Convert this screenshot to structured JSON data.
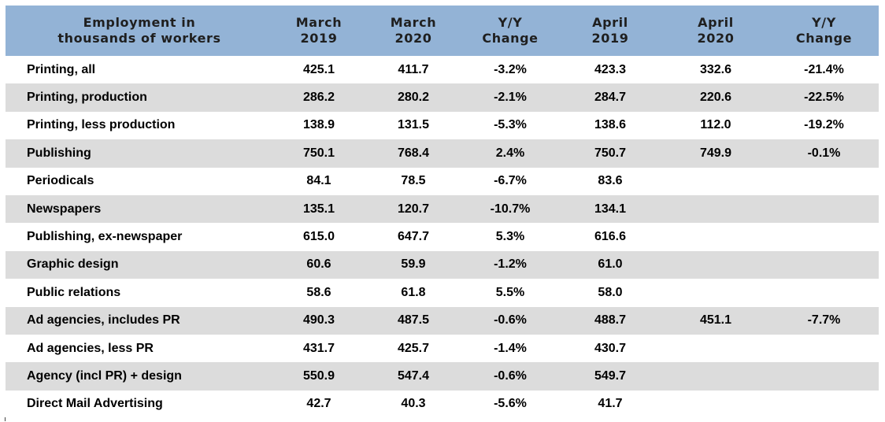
{
  "table": {
    "headers": [
      [
        "Employment in",
        "thousands of workers"
      ],
      [
        "March",
        "2019"
      ],
      [
        "March",
        "2020"
      ],
      [
        "Y/Y",
        "Change"
      ],
      [
        "April",
        "2019"
      ],
      [
        "April",
        "2020"
      ],
      [
        "Y/Y",
        "Change"
      ]
    ],
    "rows": [
      [
        "Printing, all",
        "425.1",
        "411.7",
        "-3.2%",
        "423.3",
        "332.6",
        "-21.4%"
      ],
      [
        "Printing, production",
        "286.2",
        "280.2",
        "-2.1%",
        "284.7",
        "220.6",
        "-22.5%"
      ],
      [
        "Printing, less production",
        "138.9",
        "131.5",
        "-5.3%",
        "138.6",
        "112.0",
        "-19.2%"
      ],
      [
        "Publishing",
        "750.1",
        "768.4",
        "2.4%",
        "750.7",
        "749.9",
        "-0.1%"
      ],
      [
        "Periodicals",
        "84.1",
        "78.5",
        "-6.7%",
        "83.6",
        "",
        ""
      ],
      [
        "Newspapers",
        "135.1",
        "120.7",
        "-10.7%",
        "134.1",
        "",
        ""
      ],
      [
        "Publishing, ex-newspaper",
        "615.0",
        "647.7",
        "5.3%",
        "616.6",
        "",
        ""
      ],
      [
        "Graphic design",
        "60.6",
        "59.9",
        "-1.2%",
        "61.0",
        "",
        ""
      ],
      [
        "Public relations",
        "58.6",
        "61.8",
        "5.5%",
        "58.0",
        "",
        ""
      ],
      [
        "Ad agencies, includes PR",
        "490.3",
        "487.5",
        "-0.6%",
        "488.7",
        "451.1",
        "-7.7%"
      ],
      [
        "Ad agencies, less PR",
        "431.7",
        "425.7",
        "-1.4%",
        "430.7",
        "",
        ""
      ],
      [
        "Agency (incl PR) + design",
        "550.9",
        "547.4",
        "-0.6%",
        "549.7",
        "",
        ""
      ],
      [
        "Direct Mail Advertising",
        "42.7",
        "40.3",
        "-5.6%",
        "41.7",
        "",
        ""
      ]
    ]
  },
  "colors": {
    "header_background": "#93b3d6",
    "shaded_row": "#dcdcdc"
  }
}
